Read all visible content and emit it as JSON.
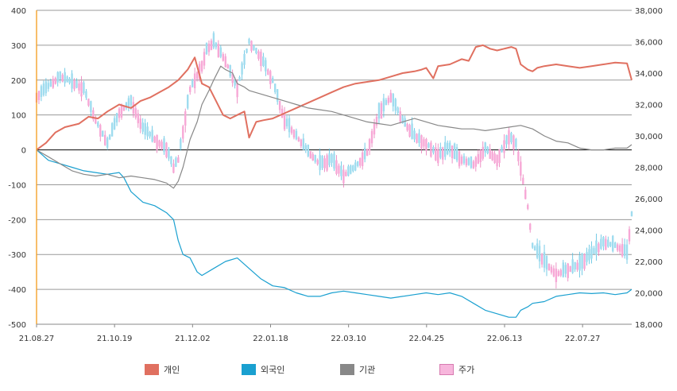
{
  "chart_data": {
    "type": "line",
    "x_ticks": [
      "21.08.27",
      "21.10.19",
      "21.12.02",
      "22.01.18",
      "22.03.10",
      "22.04.25",
      "22.06.13",
      "22.07.27"
    ],
    "left_axis": {
      "min": -500,
      "max": 400,
      "ticks": [
        "400",
        "300",
        "200",
        "100",
        "0",
        "-100",
        "-200",
        "-300",
        "-400",
        "-500"
      ]
    },
    "right_axis": {
      "min": 18000,
      "max": 38000,
      "ticks": [
        "38,000",
        "36,000",
        "34,000",
        "32,000",
        "30,000",
        "28,000",
        "26,000",
        "24,000",
        "22,000",
        "20,000",
        "18,000"
      ]
    },
    "grid": true,
    "legend_position": "bottom",
    "series": [
      {
        "name": "개인",
        "color": "#e07060",
        "axis": "left",
        "points": [
          [
            0,
            0
          ],
          [
            4,
            20
          ],
          [
            8,
            50
          ],
          [
            12,
            65
          ],
          [
            18,
            75
          ],
          [
            22,
            95
          ],
          [
            26,
            90
          ],
          [
            30,
            110
          ],
          [
            35,
            130
          ],
          [
            40,
            120
          ],
          [
            44,
            140
          ],
          [
            48,
            150
          ],
          [
            52,
            165
          ],
          [
            56,
            180
          ],
          [
            60,
            200
          ],
          [
            64,
            230
          ],
          [
            67,
            265
          ],
          [
            70,
            190
          ],
          [
            73,
            180
          ],
          [
            76,
            140
          ],
          [
            79,
            100
          ],
          [
            82,
            90
          ],
          [
            85,
            100
          ],
          [
            88,
            110
          ],
          [
            90,
            35
          ],
          [
            93,
            80
          ],
          [
            96,
            85
          ],
          [
            100,
            90
          ],
          [
            105,
            105
          ],
          [
            110,
            120
          ],
          [
            115,
            135
          ],
          [
            120,
            150
          ],
          [
            125,
            165
          ],
          [
            130,
            180
          ],
          [
            135,
            190
          ],
          [
            140,
            195
          ],
          [
            145,
            200
          ],
          [
            150,
            210
          ],
          [
            155,
            220
          ],
          [
            160,
            225
          ],
          [
            163,
            230
          ],
          [
            165,
            235
          ],
          [
            168,
            205
          ],
          [
            170,
            240
          ],
          [
            175,
            245
          ],
          [
            180,
            260
          ],
          [
            183,
            255
          ],
          [
            186,
            295
          ],
          [
            189,
            300
          ],
          [
            192,
            290
          ],
          [
            195,
            285
          ],
          [
            198,
            290
          ],
          [
            201,
            295
          ],
          [
            203,
            290
          ],
          [
            205,
            245
          ],
          [
            208,
            230
          ],
          [
            210,
            225
          ],
          [
            212,
            235
          ],
          [
            215,
            240
          ],
          [
            220,
            245
          ],
          [
            225,
            240
          ],
          [
            230,
            235
          ],
          [
            235,
            240
          ],
          [
            240,
            245
          ],
          [
            245,
            250
          ],
          [
            250,
            248
          ],
          [
            252,
            200
          ]
        ]
      },
      {
        "name": "외국인",
        "color": "#1aa0d0",
        "axis": "left",
        "points": [
          [
            0,
            0
          ],
          [
            5,
            -30
          ],
          [
            10,
            -40
          ],
          [
            15,
            -50
          ],
          [
            20,
            -60
          ],
          [
            25,
            -65
          ],
          [
            30,
            -70
          ],
          [
            35,
            -65
          ],
          [
            37,
            -80
          ],
          [
            40,
            -120
          ],
          [
            45,
            -150
          ],
          [
            50,
            -160
          ],
          [
            55,
            -180
          ],
          [
            58,
            -200
          ],
          [
            60,
            -260
          ],
          [
            62,
            -300
          ],
          [
            65,
            -310
          ],
          [
            68,
            -350
          ],
          [
            70,
            -360
          ],
          [
            75,
            -340
          ],
          [
            80,
            -320
          ],
          [
            85,
            -310
          ],
          [
            90,
            -340
          ],
          [
            95,
            -370
          ],
          [
            100,
            -390
          ],
          [
            105,
            -395
          ],
          [
            110,
            -410
          ],
          [
            115,
            -420
          ],
          [
            120,
            -420
          ],
          [
            125,
            -410
          ],
          [
            130,
            -405
          ],
          [
            135,
            -410
          ],
          [
            140,
            -415
          ],
          [
            145,
            -420
          ],
          [
            150,
            -425
          ],
          [
            155,
            -420
          ],
          [
            160,
            -415
          ],
          [
            165,
            -410
          ],
          [
            170,
            -415
          ],
          [
            175,
            -410
          ],
          [
            180,
            -420
          ],
          [
            185,
            -440
          ],
          [
            190,
            -460
          ],
          [
            195,
            -470
          ],
          [
            200,
            -480
          ],
          [
            203,
            -480
          ],
          [
            205,
            -460
          ],
          [
            208,
            -450
          ],
          [
            210,
            -440
          ],
          [
            215,
            -435
          ],
          [
            220,
            -420
          ],
          [
            225,
            -415
          ],
          [
            230,
            -410
          ],
          [
            235,
            -412
          ],
          [
            240,
            -410
          ],
          [
            245,
            -415
          ],
          [
            250,
            -410
          ],
          [
            252,
            -400
          ]
        ]
      },
      {
        "name": "기관",
        "color": "#888888",
        "axis": "left",
        "points": [
          [
            0,
            0
          ],
          [
            5,
            -20
          ],
          [
            10,
            -40
          ],
          [
            15,
            -60
          ],
          [
            20,
            -70
          ],
          [
            25,
            -75
          ],
          [
            30,
            -70
          ],
          [
            35,
            -80
          ],
          [
            40,
            -75
          ],
          [
            45,
            -80
          ],
          [
            50,
            -85
          ],
          [
            55,
            -95
          ],
          [
            58,
            -110
          ],
          [
            60,
            -90
          ],
          [
            62,
            -50
          ],
          [
            65,
            30
          ],
          [
            68,
            80
          ],
          [
            70,
            130
          ],
          [
            73,
            170
          ],
          [
            75,
            200
          ],
          [
            78,
            240
          ],
          [
            80,
            230
          ],
          [
            83,
            220
          ],
          [
            85,
            190
          ],
          [
            88,
            180
          ],
          [
            90,
            170
          ],
          [
            95,
            160
          ],
          [
            100,
            150
          ],
          [
            105,
            140
          ],
          [
            110,
            130
          ],
          [
            115,
            120
          ],
          [
            120,
            115
          ],
          [
            125,
            110
          ],
          [
            130,
            100
          ],
          [
            135,
            90
          ],
          [
            140,
            80
          ],
          [
            145,
            75
          ],
          [
            150,
            70
          ],
          [
            155,
            80
          ],
          [
            160,
            90
          ],
          [
            165,
            80
          ],
          [
            170,
            70
          ],
          [
            175,
            65
          ],
          [
            180,
            60
          ],
          [
            185,
            60
          ],
          [
            190,
            55
          ],
          [
            195,
            60
          ],
          [
            200,
            65
          ],
          [
            205,
            70
          ],
          [
            210,
            60
          ],
          [
            215,
            40
          ],
          [
            220,
            25
          ],
          [
            225,
            20
          ],
          [
            230,
            5
          ],
          [
            235,
            0
          ],
          [
            240,
            0
          ],
          [
            245,
            5
          ],
          [
            250,
            5
          ],
          [
            252,
            15
          ]
        ]
      },
      {
        "name": "주가",
        "color": "#f7b6dc",
        "axis": "right",
        "points": [
          [
            0,
            32500
          ],
          [
            10,
            33800
          ],
          [
            20,
            33000
          ],
          [
            25,
            31000
          ],
          [
            30,
            29500
          ],
          [
            35,
            31500
          ],
          [
            40,
            32200
          ],
          [
            45,
            30500
          ],
          [
            50,
            29800
          ],
          [
            55,
            29200
          ],
          [
            58,
            28000
          ],
          [
            60,
            28500
          ],
          [
            65,
            33000
          ],
          [
            70,
            34500
          ],
          [
            72,
            35500
          ],
          [
            75,
            36000
          ],
          [
            80,
            34800
          ],
          [
            85,
            33000
          ],
          [
            90,
            36000
          ],
          [
            95,
            35000
          ],
          [
            100,
            33500
          ],
          [
            105,
            31000
          ],
          [
            110,
            30000
          ],
          [
            115,
            29000
          ],
          [
            120,
            28200
          ],
          [
            125,
            28500
          ],
          [
            130,
            27500
          ],
          [
            135,
            28000
          ],
          [
            140,
            29000
          ],
          [
            145,
            31500
          ],
          [
            150,
            32500
          ],
          [
            155,
            31000
          ],
          [
            160,
            30000
          ],
          [
            165,
            29500
          ],
          [
            170,
            28800
          ],
          [
            175,
            29200
          ],
          [
            180,
            28500
          ],
          [
            185,
            28200
          ],
          [
            190,
            29200
          ],
          [
            195,
            28500
          ],
          [
            200,
            30000
          ],
          [
            203,
            29500
          ],
          [
            205,
            28000
          ],
          [
            208,
            25500
          ],
          [
            210,
            23000
          ],
          [
            215,
            22000
          ],
          [
            220,
            21200
          ],
          [
            225,
            21500
          ],
          [
            230,
            21800
          ],
          [
            235,
            22500
          ],
          [
            240,
            23200
          ],
          [
            245,
            23000
          ],
          [
            248,
            22800
          ],
          [
            250,
            22500
          ],
          [
            252,
            25000
          ]
        ]
      }
    ]
  }
}
